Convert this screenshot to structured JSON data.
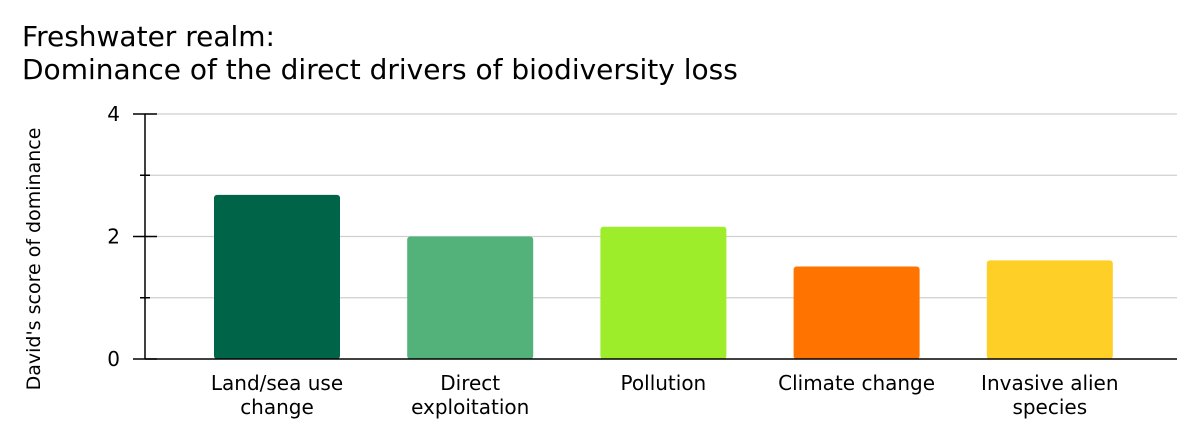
{
  "chart_data": {
    "type": "bar",
    "title_lines": [
      "Freshwater realm:",
      "Dominance of the direct drivers of biodiversity loss"
    ],
    "xlabel": "",
    "ylabel": "David's score of dominance",
    "ylim": [
      0,
      4
    ],
    "yticks": [
      0,
      2,
      4
    ],
    "minor_yticks": [
      1,
      3
    ],
    "grid": true,
    "categories": [
      [
        "Land/sea use",
        "change"
      ],
      [
        "Direct",
        "exploitation"
      ],
      [
        "Pollution"
      ],
      [
        "Climate change"
      ],
      [
        "Invasive alien",
        "species"
      ]
    ],
    "values": [
      2.68,
      2.0,
      2.16,
      1.51,
      1.61
    ],
    "colors": [
      "#006548",
      "#52b27a",
      "#9ded2b",
      "#ff7300",
      "#fecf26"
    ]
  }
}
